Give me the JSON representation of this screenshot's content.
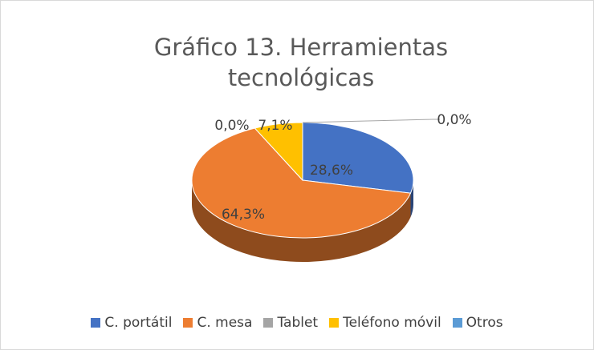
{
  "chart_data": {
    "type": "pie",
    "title": "Gráfico 13. Herramientas tecnológicas",
    "categories": [
      "C. portátil",
      "C. mesa",
      "Tablet",
      "Teléfono móvil",
      "Otros"
    ],
    "values": [
      28.6,
      64.3,
      0.0,
      7.1,
      0.0
    ],
    "value_labels": [
      "28,6%",
      "64,3%",
      "0,0%",
      "7,1%",
      "0,0%"
    ],
    "colors": [
      "#4472c4",
      "#ed7d31",
      "#a5a5a5",
      "#ffc000",
      "#5b9bd5"
    ],
    "legend": "bottom"
  }
}
